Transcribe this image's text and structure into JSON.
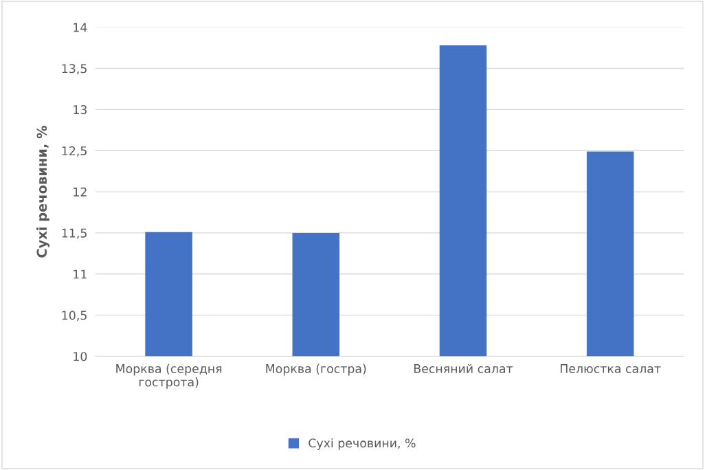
{
  "chart_data": {
    "type": "bar",
    "ylabel": "Сухі речовини, %",
    "categories": [
      "Морква (середня\nгострота)",
      "Морква (гостра)",
      "Весняний салат",
      "Пелюстка салат"
    ],
    "series": [
      {
        "name": "Сухі речовини, %",
        "color": "#4472c4",
        "values": [
          11.51,
          11.5,
          13.78,
          12.49
        ]
      }
    ],
    "ylim": [
      10,
      14
    ],
    "yticks": [
      10,
      {
        "value": 10.5,
        "label": "10,5"
      },
      11,
      {
        "value": 11.5,
        "label": "11,5"
      },
      12,
      {
        "value": 12.5,
        "label": "12,5"
      },
      13,
      {
        "value": 13.5,
        "label": "13,5"
      },
      14
    ],
    "grid": "y",
    "legend": "bottom"
  }
}
